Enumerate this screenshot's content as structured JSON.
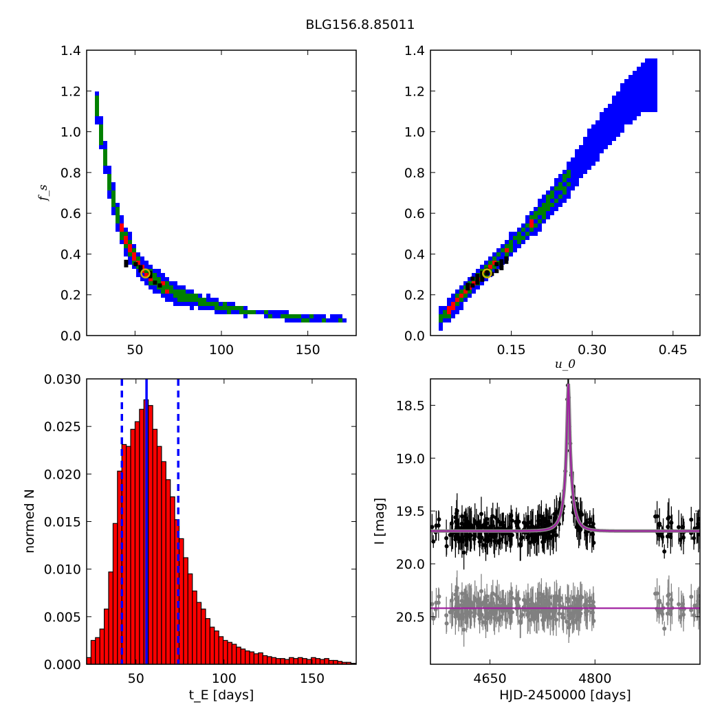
{
  "figure": {
    "title": "BLG156.8.85011"
  },
  "chart_data": [
    {
      "type": "heatmap",
      "panel": "fs-vs-tE",
      "xlabel": "",
      "ylabel": "f_s",
      "xlim": [
        22,
        178
      ],
      "ylim": [
        0.0,
        1.4
      ],
      "xticks": [
        50,
        100,
        150
      ],
      "yticks": [
        0.0,
        0.2,
        0.4,
        0.6,
        0.8,
        1.0,
        1.2,
        1.4
      ],
      "colors": {
        "outer": "#0000ff",
        "middle": "#008000",
        "inner": "#ff0000",
        "core": "#000000"
      },
      "curve_x": [
        28,
        32,
        36,
        40,
        45,
        50,
        56,
        62,
        70,
        80,
        90,
        100,
        115,
        130,
        150,
        170
      ],
      "curve_y": [
        1.12,
        0.9,
        0.72,
        0.58,
        0.46,
        0.38,
        0.31,
        0.265,
        0.225,
        0.185,
        0.16,
        0.14,
        0.118,
        0.1,
        0.085,
        0.078
      ],
      "best_fit": {
        "x": 56,
        "y": 0.305,
        "color": "#c8b400"
      }
    },
    {
      "type": "heatmap",
      "panel": "fs-vs-u0",
      "xlabel": "u_0",
      "ylabel": "",
      "xlim": [
        0.0,
        0.5
      ],
      "ylim": [
        0.0,
        1.4
      ],
      "xticks": [
        0.15,
        0.3,
        0.45
      ],
      "yticks": [
        0.0,
        0.2,
        0.4,
        0.6,
        0.8,
        1.0,
        1.2,
        1.4
      ],
      "colors": {
        "outer": "#0000ff",
        "middle": "#008000",
        "inner": "#ff0000",
        "core": "#000000"
      },
      "curve_x": [
        0.02,
        0.05,
        0.08,
        0.1,
        0.13,
        0.16,
        0.2,
        0.24,
        0.28,
        0.32,
        0.36,
        0.4
      ],
      "curve_y": [
        0.08,
        0.17,
        0.26,
        0.31,
        0.39,
        0.47,
        0.58,
        0.71,
        0.85,
        1.0,
        1.13,
        1.23
      ],
      "best_fit": {
        "x": 0.105,
        "y": 0.305,
        "color": "#c8b400"
      }
    },
    {
      "type": "bar",
      "panel": "tE-histogram",
      "xlabel": "t_E [days]",
      "ylabel": "normed N",
      "xlim": [
        22,
        175
      ],
      "ylim": [
        0.0,
        0.03
      ],
      "xticks": [
        50,
        100,
        150
      ],
      "yticks": [
        0.0,
        0.005,
        0.01,
        0.015,
        0.02,
        0.025,
        0.03
      ],
      "ytick_labels": [
        "0.000",
        "0.005",
        "0.010",
        "0.015",
        "0.020",
        "0.025",
        "0.030"
      ],
      "bin_start": 22,
      "bin_width": 2.5,
      "values": [
        0.0007,
        0.0025,
        0.0028,
        0.0037,
        0.0058,
        0.0097,
        0.0148,
        0.0203,
        0.0231,
        0.0229,
        0.0247,
        0.0255,
        0.0268,
        0.0278,
        0.0272,
        0.0247,
        0.0229,
        0.0213,
        0.0194,
        0.0176,
        0.0152,
        0.0132,
        0.0112,
        0.0095,
        0.0077,
        0.0065,
        0.0058,
        0.0048,
        0.0039,
        0.0035,
        0.0029,
        0.0025,
        0.0023,
        0.0021,
        0.0018,
        0.0016,
        0.0014,
        0.0013,
        0.0011,
        0.0012,
        0.0009,
        0.0008,
        0.0007,
        0.0006,
        0.0006,
        0.0005,
        0.0007,
        0.0006,
        0.0007,
        0.0006,
        0.0005,
        0.0007,
        0.0006,
        0.0005,
        0.0006,
        0.0004,
        0.0004,
        0.0003,
        0.0002,
        0.0002,
        0.0001
      ],
      "bar_color": "#ff0000",
      "median": 56,
      "percentile_lines": [
        42,
        74
      ],
      "line_color": "#0000ff"
    },
    {
      "type": "scatter",
      "panel": "light-curve",
      "xlabel": "HJD-2450000 [days]",
      "ylabel": "I [mag]",
      "xlim": [
        4565,
        4950
      ],
      "ylim": [
        20.95,
        18.25
      ],
      "xticks": [
        4650,
        4800
      ],
      "yticks": [
        18.5,
        19.0,
        19.5,
        20.0,
        20.5
      ],
      "ytick_labels": [
        "18.5",
        "19.0",
        "19.5",
        "20.0",
        "20.5"
      ],
      "model": {
        "t0": 4762,
        "u0": 0.105,
        "tE": 56,
        "fs": 0.305,
        "base_mag": 19.69,
        "color": "#a020a0"
      },
      "residual_offset": 20.42,
      "data_color": "#000000",
      "residual_color": "#808080",
      "n_points": 330
    }
  ]
}
